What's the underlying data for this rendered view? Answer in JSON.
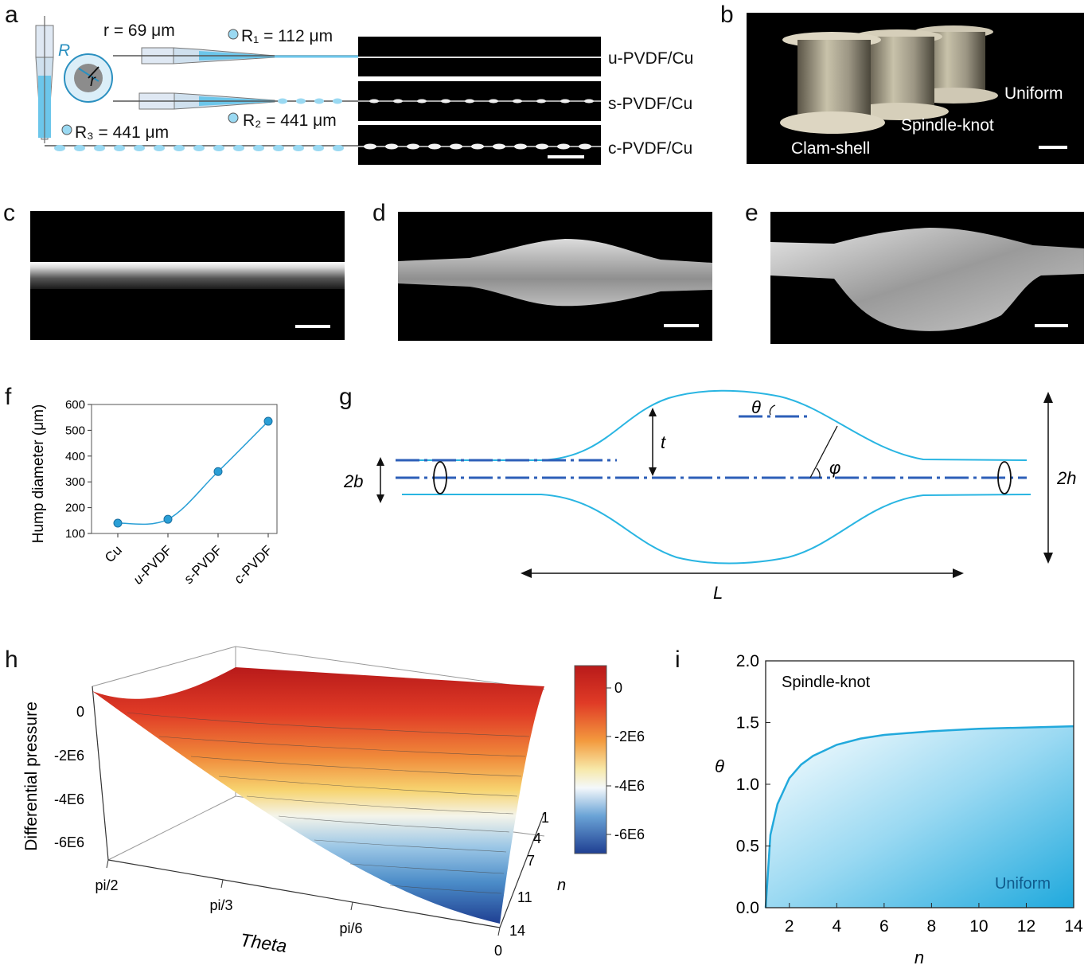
{
  "panel_labels": [
    "a",
    "b",
    "c",
    "d",
    "e",
    "f",
    "g",
    "h",
    "i"
  ],
  "panel_a": {
    "r_text": "r = 69 μm",
    "R1_text": "R₁ = 112 μm",
    "R2_text": "R₂ = 441 μm",
    "R3_text": "R₃ = 441 μm",
    "R_symbol": "R",
    "r_symbol": "r",
    "fiber_labels": [
      "u-PVDF/Cu",
      "s-PVDF/Cu",
      "c-PVDF/Cu"
    ],
    "accent_color": "#33b3e0"
  },
  "panel_b": {
    "labels": [
      "Uniform",
      "Spindle-knot",
      "Clam-shell"
    ]
  },
  "panel_g": {
    "symbols": [
      "θ",
      "t",
      "φ",
      "2b",
      "2h",
      "L"
    ]
  },
  "chart_data": [
    {
      "id": "f",
      "type": "scatter",
      "categories": [
        "Cu",
        "u-PVDF",
        "s-PVDF",
        "c-PVDF"
      ],
      "values": [
        140,
        155,
        340,
        535
      ],
      "ylabel": "Hump diameter (μm)",
      "xlabel": "",
      "ylim": [
        100,
        600
      ],
      "yticks": [
        100,
        200,
        300,
        400,
        500,
        600
      ]
    },
    {
      "id": "h",
      "type": "surface3d",
      "zlabel": "Differential pressure",
      "xlabel": "Theta",
      "ylabel": "n",
      "theta_ticks": [
        "pi/2",
        "pi/3",
        "pi/6",
        "0"
      ],
      "n_ticks": [
        "1",
        "4",
        "7",
        "11",
        "14"
      ],
      "z_ticks": [
        "0",
        "-2E6",
        "-4E6",
        "-6E6"
      ],
      "colorbar_ticks": [
        "0",
        "-2E6",
        "-4E6",
        "-6E6"
      ],
      "zlim": [
        -7000000,
        1000000
      ]
    },
    {
      "id": "i",
      "type": "area",
      "xlabel": "n",
      "ylabel": "θ",
      "xlim": [
        1,
        14
      ],
      "ylim": [
        0,
        2
      ],
      "xticks": [
        2,
        4,
        6,
        8,
        10,
        12,
        14
      ],
      "yticks": [
        "0.0",
        "0.5",
        "1.0",
        "1.5",
        "2.0"
      ],
      "series": [
        {
          "name": "boundary",
          "x": [
            1,
            1.2,
            1.5,
            2,
            2.5,
            3,
            4,
            5,
            6,
            8,
            10,
            12,
            14
          ],
          "y": [
            0.0,
            0.59,
            0.84,
            1.05,
            1.16,
            1.23,
            1.32,
            1.37,
            1.4,
            1.43,
            1.45,
            1.46,
            1.47
          ]
        }
      ],
      "region_labels": [
        "Spindle-knot",
        "Uniform"
      ]
    }
  ]
}
